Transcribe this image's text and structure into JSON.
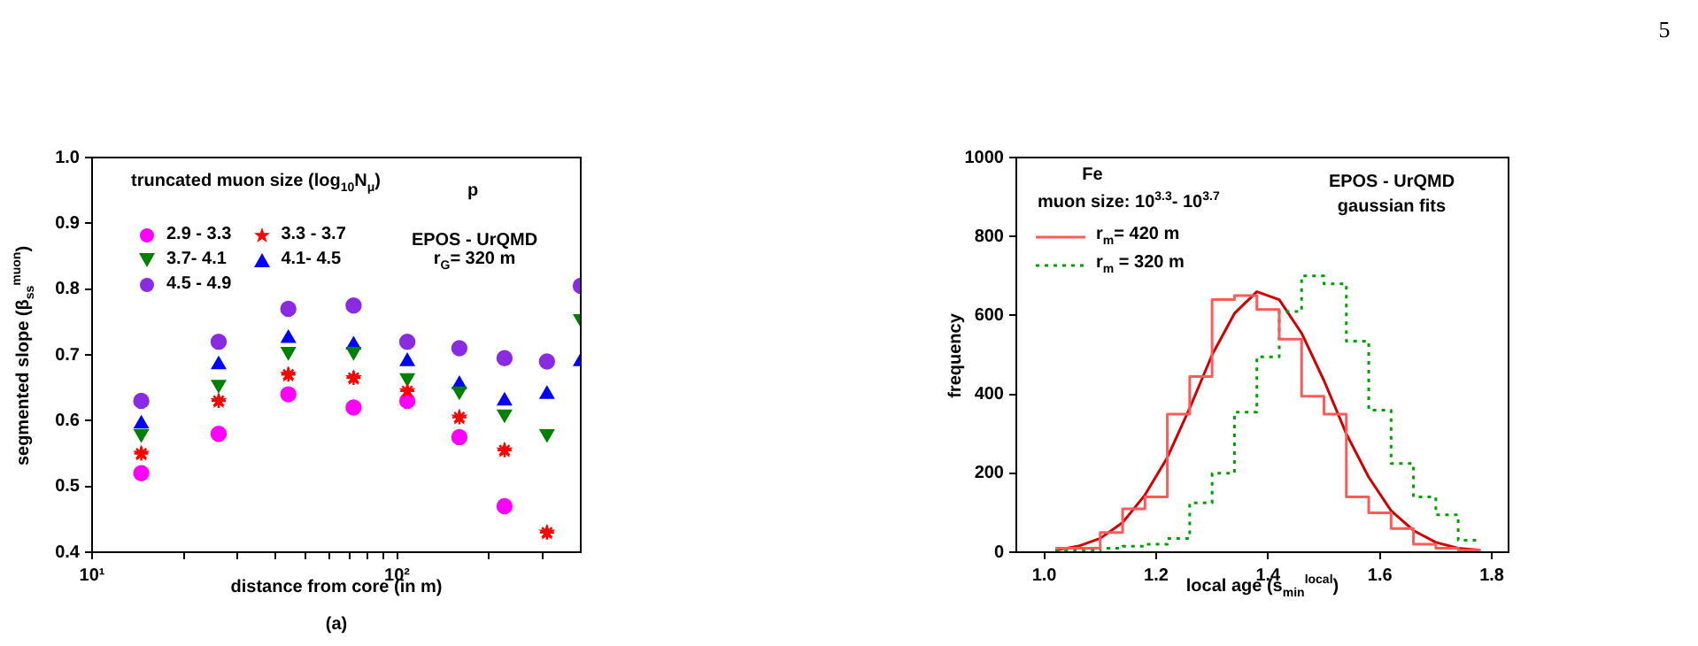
{
  "chart_data": [
    {
      "type": "scatter",
      "xlabel": "distance from core (in m)",
      "ylabel": "segmented slope (β$_{ss}$$^{muon}$)",
      "legend_title": "truncated muon size (log$_{10}$N$_{μ}$)",
      "annotations": [
        "p",
        "EPOS - UrQMD",
        "r$_{G}$= 320 m",
        "(a)"
      ],
      "x": [
        14.5,
        26,
        44,
        72,
        108,
        160,
        225,
        310,
        400
      ],
      "series": [
        {
          "name": "2.9 - 3.3",
          "color": "#ff00ff",
          "marker": "circle",
          "values": [
            0.52,
            0.58,
            0.64,
            0.62,
            0.63,
            0.575,
            0.47,
            null,
            null
          ]
        },
        {
          "name": "3.3 - 3.7",
          "color": "#ff0000",
          "marker": "star",
          "values": [
            0.55,
            0.63,
            0.67,
            0.665,
            0.645,
            0.605,
            0.555,
            0.43,
            null
          ]
        },
        {
          "name": "3.7- 4.1",
          "color": "#008000",
          "marker": "triangle-down",
          "values": [
            0.58,
            0.655,
            0.705,
            0.705,
            0.665,
            0.645,
            0.61,
            0.58,
            0.755
          ]
        },
        {
          "name": "4.1- 4.5",
          "color": "#0000ff",
          "marker": "triangle",
          "values": [
            0.595,
            0.685,
            0.725,
            0.715,
            0.69,
            0.655,
            0.63,
            0.64,
            0.69
          ]
        },
        {
          "name": "4.5 - 4.9",
          "color": "#8a2be2",
          "marker": "circle",
          "values": [
            0.63,
            0.72,
            0.77,
            0.775,
            0.72,
            0.71,
            0.695,
            0.69,
            0.805
          ]
        }
      ],
      "log": "x",
      "xlim": [
        10,
        400
      ],
      "xticks": [
        {
          "value": 10,
          "label": "10¹"
        },
        {
          "value": 20,
          "label": null
        },
        {
          "value": 30,
          "label": null
        },
        {
          "value": 40,
          "label": null
        },
        {
          "value": 50,
          "label": null
        },
        {
          "value": 60,
          "label": null
        },
        {
          "value": 70,
          "label": null
        },
        {
          "value": 80,
          "label": null
        },
        {
          "value": 90,
          "label": null
        },
        {
          "value": 100,
          "label": "10²"
        },
        {
          "value": 200,
          "label": null
        },
        {
          "value": 300,
          "label": null
        }
      ],
      "ylim": [
        0.4,
        1.0
      ],
      "yticks": [
        0.4,
        0.5,
        0.6,
        0.7,
        0.8,
        0.9,
        {
          "value": 1,
          "label": "1.0"
        }
      ],
      "legend": "top left"
    },
    {
      "type": "histogram",
      "xlabel": "local age (s$_{min}$$^{local}$)",
      "ylabel": "frequency",
      "annotations": [
        "Fe",
        "muon size: 10$^{3.3}$- 10$^{3.7}$",
        "EPOS - UrQMD",
        "gaussian fits",
        "5"
      ],
      "bins": [
        1.02,
        1.06,
        1.1,
        1.14,
        1.18,
        1.22,
        1.26,
        1.3,
        1.34,
        1.38,
        1.42,
        1.46,
        1.5,
        1.54,
        1.58,
        1.62,
        1.66,
        1.7,
        1.74,
        1.78
      ],
      "series": [
        {
          "name": "r$_{m}$= 420 m",
          "color": "#ff5a5a",
          "line_style": "solid",
          "values": [
            10,
            10,
            50,
            110,
            140,
            350,
            445,
            640,
            650,
            615,
            540,
            395,
            350,
            140,
            100,
            60,
            20,
            10,
            5
          ]
        },
        {
          "name": "r$_{m}$ = 320 m",
          "color": "#00a000",
          "line_style": "dotted",
          "values": [
            5,
            5,
            10,
            15,
            20,
            35,
            125,
            200,
            355,
            495,
            610,
            700,
            680,
            535,
            360,
            225,
            140,
            95,
            30
          ]
        },
        {
          "type": "line",
          "color": "#d00000",
          "marker": "none",
          "x": [
            1.02,
            1.06,
            1.1,
            1.14,
            1.18,
            1.22,
            1.26,
            1.3,
            1.34,
            1.38,
            1.42,
            1.46,
            1.5,
            1.54,
            1.58,
            1.62,
            1.66,
            1.7,
            1.74,
            1.78
          ],
          "values": [
            5,
            15,
            35,
            75,
            145,
            240,
            365,
            500,
            605,
            660,
            640,
            555,
            435,
            300,
            190,
            105,
            55,
            25,
            10,
            5
          ]
        }
      ],
      "xlim": [
        0.95,
        1.83
      ],
      "xticks": [
        {
          "value": 1,
          "label": "1.0"
        },
        1.2,
        1.4,
        1.6,
        1.8
      ],
      "ylim": [
        0,
        1000
      ],
      "yticks": [
        0,
        200,
        400,
        600,
        800,
        1000
      ],
      "legend": "top left"
    }
  ]
}
